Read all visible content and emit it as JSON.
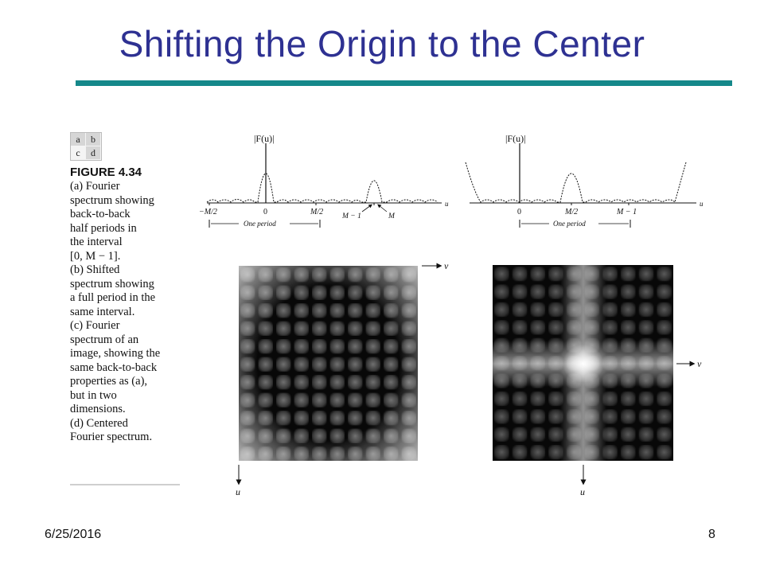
{
  "slide": {
    "title": "Shifting the Origin to the Center",
    "date": "6/25/2016",
    "page_number": "8"
  },
  "figure": {
    "panel_layout": [
      "a",
      "b",
      "c",
      "d"
    ],
    "number": "FIGURE 4.34",
    "caption_lines": [
      "(a) Fourier",
      "spectrum showing",
      "back-to-back",
      "half periods in",
      "the interval",
      "[0, M − 1].",
      "(b) Shifted",
      "spectrum showing",
      "a full period in the",
      "same interval.",
      "(c) Fourier",
      "spectrum of an",
      "image, showing the",
      "same back-to-back",
      "properties as (a),",
      "but in two",
      "dimensions.",
      "(d) Centered",
      "Fourier spectrum."
    ]
  },
  "plot_a": {
    "ylabel": "|F(u)|",
    "xvar": "u",
    "ticks": [
      "−M/2",
      "0",
      "M/2"
    ],
    "arrow_labels": [
      "M − 1",
      "M"
    ],
    "period_label": "One period"
  },
  "plot_b": {
    "ylabel": "|F(u)|",
    "xvar": "u",
    "ticks": [
      "0",
      "M/2",
      "M − 1"
    ],
    "period_label": "One period"
  },
  "image_c": {
    "h_axis": "v",
    "v_axis": "u"
  },
  "image_d": {
    "h_axis": "v",
    "v_axis": "u"
  },
  "colors": {
    "title": "#2e3192",
    "rule": "#15888a"
  }
}
